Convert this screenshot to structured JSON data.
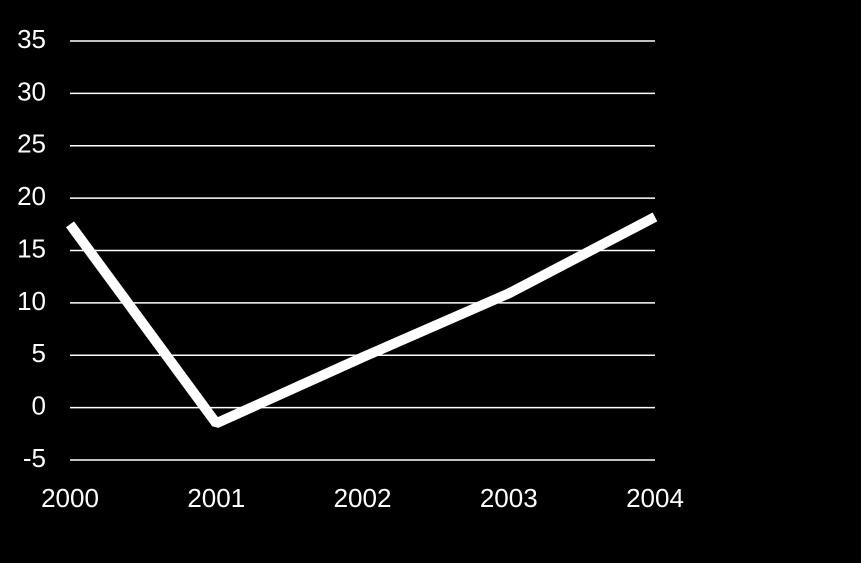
{
  "chart_data": {
    "type": "line",
    "x": [
      2000,
      2001,
      2002,
      2003,
      2004
    ],
    "series": [
      {
        "color": "#ffffff",
        "values": [
          17.5,
          -1.5,
          4.8,
          10.9,
          18.2
        ]
      }
    ],
    "xlim": [
      2000,
      2004
    ],
    "xticks": [
      2000,
      2001,
      2002,
      2003,
      2004
    ],
    "ylim": [
      -5,
      35
    ],
    "yticks": [
      -5,
      0,
      5,
      10,
      15,
      20,
      25,
      30,
      35
    ],
    "grid": true
  }
}
